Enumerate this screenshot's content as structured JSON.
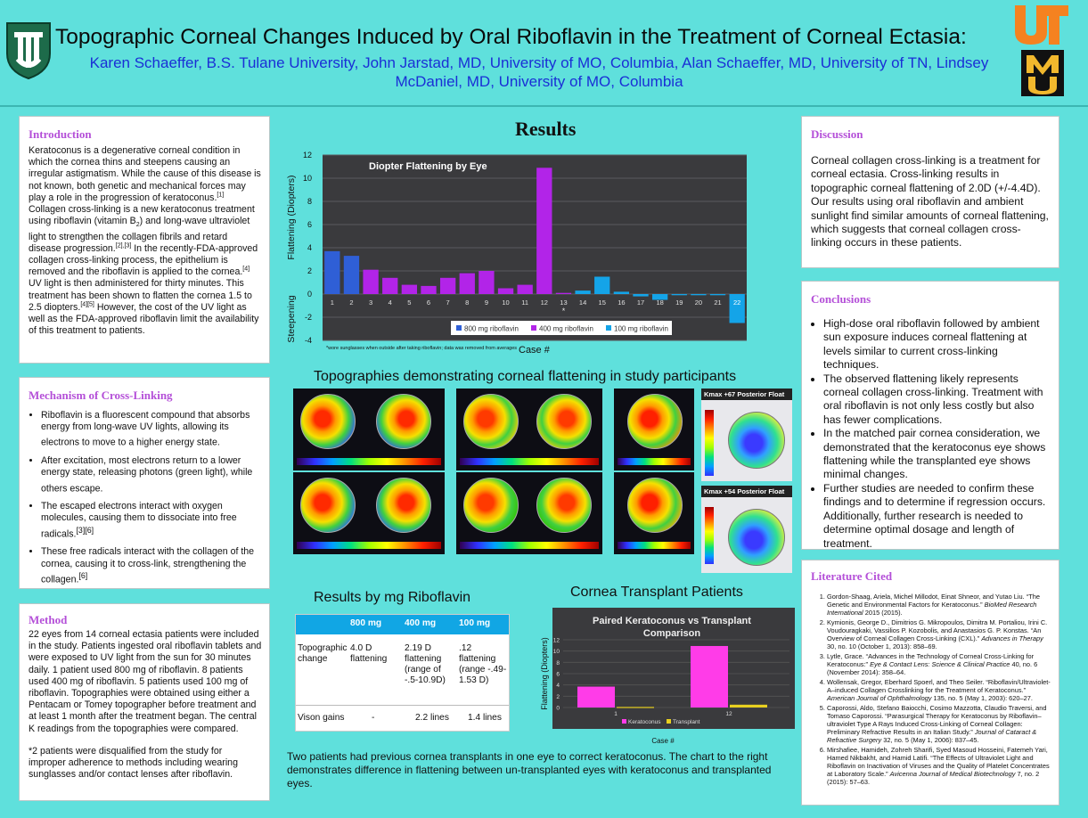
{
  "header": {
    "title": "Topographic Corneal Changes Induced by Oral Riboflavin in the Treatment of Corneal Ectasia:",
    "authors": "Karen Schaeffer, B.S. Tulane University, John Jarstad, MD, University of MO, Columbia, Alan Schaeffer, MD, University of TN, Lindsey McDaniel, MD, University of MO, Columbia",
    "logo_left": "tulane-logo-icon",
    "logo_right_top": "ut-logo-icon",
    "logo_right_bottom": "mu-logo-icon"
  },
  "introduction": {
    "heading": "Introduction",
    "p1": "Keratoconus is a degenerative corneal condition in which the cornea thins and steepens causing an irregular astigmatism.  While the cause of this disease is not known, both genetic and mechanical forces may play a role in the progression of keratoconus.",
    "c1": "[1]",
    "p2": "  Collagen cross-linking is a new keratoconus treatment using riboflavin (vitamin B",
    "sub2": "2",
    "p3": ") and long-wave ultraviolet light to strengthen the collagen fibrils and retard disease progression.",
    "c2": "[2],[3]",
    "p4": " In the recently-FDA-approved collagen cross-linking process, the epithelium is removed and the riboflavin is applied to the cornea.",
    "c3": "[4]",
    "p5": "  UV light is then administered for thirty minutes.  This treatment has been shown to flatten the cornea 1.5 to 2.5 diopters.",
    "c4": "[4][5]",
    "p6": "  However, the cost of the UV light as well as the FDA-approved riboflavin limit the availability of this treatment to patients."
  },
  "mechanism": {
    "heading": "Mechanism of Cross-Linking",
    "items": [
      {
        "text": "Riboflavin is a fluorescent compound that absorbs energy from long-wave UV lights, allowing its electrons to move to a higher energy state.",
        "cite": ""
      },
      {
        "text": "After excitation, most electrons return to a lower energy state, releasing photons (green light), while others escape.",
        "cite": ""
      },
      {
        "text": "The escaped electrons interact with oxygen molecules, causing them to dissociate into free radicals.",
        "cite": "[3][6]"
      },
      {
        "text": "These free radicals interact with the collagen of the cornea, causing it to cross-link, strengthening the collagen.",
        "cite": "[6]"
      }
    ]
  },
  "method": {
    "heading": "Method",
    "p1": "22 eyes from 14 corneal ectasia patients were included in the study. Patients ingested oral riboflavin tablets and were exposed to UV light from the sun for 30 minutes daily. 1 patient used 800 mg of riboflavin.  8 patients used 400 mg of riboflavin. 5 patients used 100 mg of riboflavin. Topographies were obtained using either a Pentacam or Tomey topographer before treatment and at least 1 month after the treatment began.  The central K readings from the topographies were compared.",
    "p2": "*2 patients were disqualified from the study for improper adherence to methods including wearing sunglasses and/or contact lenses after riboflavin."
  },
  "results": {
    "heading": "Results",
    "topographies_heading": "Topographies demonstrating corneal flattening in study participants",
    "kmax1": "Kmax +67 Posterior Float",
    "kmax2": "Kmax +54 Posterior Float",
    "by_mg_heading": "Results by mg Riboflavin",
    "transplant_heading": "Cornea Transplant Patients",
    "transplant_text": "Two patients had previous cornea transplants in one eye to correct keratoconus.  The chart to the right demonstrates difference in flattening between un-transplanted eyes with keratoconus and transplanted eyes."
  },
  "mg_table": {
    "columns": [
      "800 mg",
      "400 mg",
      "100 mg"
    ],
    "rows": [
      {
        "label": "Topographic change",
        "values": [
          "4.0 D flattening",
          "2.19 D flattening (range of -.5-10.9D)",
          ".12 flattening (range -.49-1.53 D)"
        ]
      },
      {
        "label": "Vison gains",
        "values": [
          "-",
          "2.2 lines",
          "1.4 lines"
        ]
      }
    ]
  },
  "chart_data": [
    {
      "type": "bar",
      "title": "Diopter Flattening by Eye",
      "xlabel": "Case #",
      "ylabel": "Flattening (Diopters)",
      "ylabel2": "Steepening",
      "ylim": [
        -4,
        12
      ],
      "yticks": [
        12,
        10,
        8,
        6,
        4,
        2,
        0,
        -2,
        -4
      ],
      "categories": [
        "1",
        "2",
        "3",
        "4",
        "5",
        "6",
        "7",
        "8",
        "9",
        "10",
        "11",
        "12",
        "13",
        "14",
        "15",
        "16",
        "17",
        "18",
        "19",
        "20",
        "21",
        "22"
      ],
      "values": [
        3.7,
        3.3,
        2.1,
        1.4,
        0.8,
        0.7,
        1.4,
        1.8,
        2.0,
        0.5,
        0.8,
        10.9,
        0.1,
        0.3,
        1.5,
        0.2,
        -0.2,
        -0.5,
        -0.1,
        -0.1,
        -0.1,
        -2.5
      ],
      "groups": [
        "800 mg riboflavin",
        "800 mg riboflavin",
        "400 mg riboflavin",
        "400 mg riboflavin",
        "400 mg riboflavin",
        "400 mg riboflavin",
        "400 mg riboflavin",
        "400 mg riboflavin",
        "400 mg riboflavin",
        "400 mg riboflavin",
        "400 mg riboflavin",
        "400 mg riboflavin",
        "400 mg riboflavin",
        "100 mg riboflavin",
        "100 mg riboflavin",
        "100 mg riboflavin",
        "100 mg riboflavin",
        "100 mg riboflavin",
        "100 mg riboflavin",
        "100 mg riboflavin",
        "100 mg riboflavin",
        "100 mg riboflavin"
      ],
      "legend": [
        {
          "name": "800 mg riboflavin",
          "color": "#2f5fd6"
        },
        {
          "name": "400 mg riboflavin",
          "color": "#b224e8"
        },
        {
          "name": "100 mg riboflavin",
          "color": "#14a4e8"
        }
      ],
      "footnote": "*wore sunglasses when outside after taking riboflavin; data was removed from averages",
      "asterisk_on": "13",
      "legend_position": "bottom",
      "grid": true
    },
    {
      "type": "bar",
      "title": "Paired Keratoconus vs Transplant Comparison",
      "xlabel": "Case #",
      "ylabel": "Flattening (Diopters)",
      "ylim": [
        0,
        12
      ],
      "yticks": [
        12,
        10,
        8,
        6,
        4,
        2,
        0
      ],
      "categories": [
        "1",
        "12"
      ],
      "series": [
        {
          "name": "Keratoconus",
          "values": [
            3.7,
            10.9
          ],
          "color": "#ff3ce8"
        },
        {
          "name": "Transplant",
          "values": [
            0.1,
            0.5
          ],
          "color": "#e8d020"
        }
      ],
      "legend_position": "bottom",
      "grid": true
    }
  ],
  "discussion": {
    "heading": "Discussion",
    "text": "Corneal collagen cross-linking is a treatment for corneal ectasia.  Cross-linking results in topographic corneal flattening of 2.0D (+/-4.4D). Our results using oral riboflavin and ambient sunlight find similar amounts of corneal flattening, which suggests that corneal collagen cross-linking occurs in these patients."
  },
  "conclusions": {
    "heading": "Conclusions",
    "items": [
      "High-dose oral riboflavin followed by ambient sun exposure induces corneal flattening at levels similar to current cross-linking techniques.",
      "The observed flattening likely represents corneal collagen cross-linking.  Treatment with oral riboflavin is not only less costly but also has fewer complications.",
      "In the matched pair cornea consideration, we demonstrated that the keratoconus eye shows flattening while the transplanted eye shows minimal changes.",
      "Further studies are needed to confirm these findings and to determine if regression occurs. Additionally, further research is needed to determine optimal dosage and length of treatment."
    ]
  },
  "literature": {
    "heading": "Literature Cited",
    "refs": [
      {
        "a": "Gordon-Shaag, Ariela, Michel Millodot, Einat Shneor, and Yutao Liu. “The Genetic and Environmental Factors for Keratoconus.” ",
        "j": "BioMed Research International",
        "b": " 2015 (2015)."
      },
      {
        "a": "Kymionis, George D., Dimitrios G. Mikropoulos, Dimitra M. Portaliou, Irini C. Voudouragkaki, Vassilios P. Kozobolis, and Anastasios G. P. Konstas. “An Overview of Corneal Collagen Cross-Linking (CXL).” ",
        "j": "Advances in Therapy",
        "b": " 30, no. 10 (October 1, 2013): 858–69."
      },
      {
        "a": "Lytle, Grace. “Advances in the Technology of Corneal Cross-Linking for Keratoconus:” ",
        "j": "Eye & Contact Lens: Science & Clinical Practice",
        "b": " 40, no. 6 (November 2014): 358–64."
      },
      {
        "a": "Wollensak, Gregor, Eberhard Spoerl, and Theo Seiler. “Riboflavin/Ultraviolet-A–induced Collagen Crosslinking for the Treatment of Keratoconus.” ",
        "j": "American Journal of Ophthalmology",
        "b": " 135, no. 5 (May 1, 2003): 620–27."
      },
      {
        "a": "Caporossi, Aldo, Stefano Baiocchi, Cosimo Mazzotta, Claudio Traversi, and Tomaso Caporossi. “Parasurgical Therapy for Keratoconus by Riboflavin–ultraviolet Type A Rays Induced Cross-Linking of Corneal Collagen: Preliminary Refractive Results in an Italian Study.” ",
        "j": "Journal of Cataract & Refractive Surgery",
        "b": " 32, no. 5 (May 1, 2006): 837–45."
      },
      {
        "a": "Mirshafiee, Hamideh, Zohreh Sharifi, Syed Masoud Hosseini, Fatemeh Yari, Hamed Nikbakht, and Hamid Latifi. “The Effects of Ultraviolet Light and Riboflavin on Inactivation of Viruses and the Quality of Platelet Concentrates at Laboratory Scale.” ",
        "j": "Avicenna Journal of Medical Biotechnology",
        "b": " 7, no. 2 (2015): 57–63."
      }
    ]
  }
}
